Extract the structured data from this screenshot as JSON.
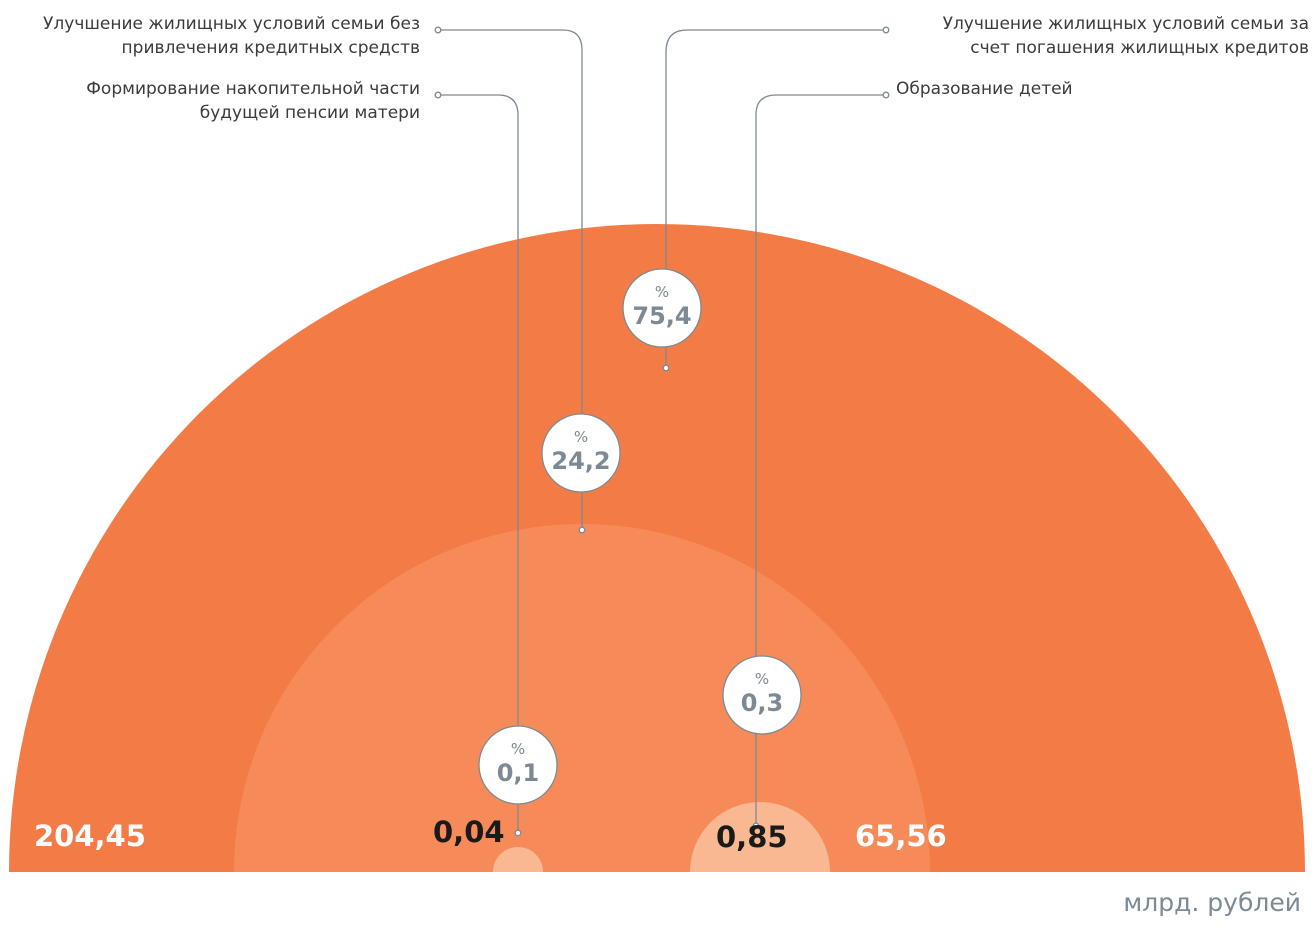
{
  "chart_data": {
    "type": "pie",
    "unit": "млрд. рублей",
    "slices": [
      {
        "label": "Улучшение жилищных условий семьи без привлечения кредитных средств",
        "label_lines": [
          "Улучшение жилищных условий семьи без",
          "привлечения кредитных средств"
        ],
        "value_bln": 65.56,
        "value_text": "65,56",
        "percent": 24.2,
        "percent_text": "24,2"
      },
      {
        "label": "Улучшение жилищных условий семьи за счет погашения жилищных кредитов",
        "label_lines": [
          "Улучшение жилищных условий семьи за",
          "счет погашения жилищных кредитов"
        ],
        "value_bln": 204.45,
        "value_text": "204,45",
        "percent": 75.4,
        "percent_text": "75,4"
      },
      {
        "label": "Формирование накопительной части будущей пенсии матери",
        "label_lines": [
          "Формирование накопительной части",
          "будущей пенсии матери"
        ],
        "value_bln": 0.04,
        "value_text": "0,04",
        "percent": 0.1,
        "percent_text": "0,1"
      },
      {
        "label": "Образование детей",
        "label_lines": [
          "Образование детей"
        ],
        "value_bln": 0.85,
        "value_text": "0,85",
        "percent": 0.3,
        "percent_text": "0,3"
      }
    ],
    "percent_symbol": "%"
  },
  "colors": {
    "outer": "#f37c46",
    "middle": "#f68b59",
    "inner": "#f9b892",
    "bubble_text": "#7d8a93",
    "bubble_stroke": "#7d8a93",
    "line": "#7d8a93",
    "value_light": "#ffffff",
    "value_dark": "#1a1a1a",
    "legend_text": "#3b3b3b"
  }
}
